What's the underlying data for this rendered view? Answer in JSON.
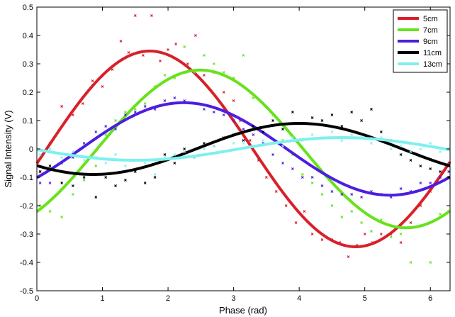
{
  "chart_data": {
    "type": "scatter",
    "title": "",
    "xlabel": "Phase (rad)",
    "ylabel": "Signal Intensity (V)",
    "xlim": [
      0,
      6.3
    ],
    "ylim": [
      -0.5,
      0.5
    ],
    "xticks": [
      0,
      1,
      2,
      3,
      4,
      5,
      6
    ],
    "yticks": [
      -0.5,
      -0.4,
      -0.3,
      -0.2,
      -0.1,
      0,
      0.1,
      0.2,
      0.3,
      0.4,
      0.5
    ],
    "grid": false,
    "legend_position": "top-right",
    "series": [
      {
        "name": "5cm",
        "color": "#d8202a",
        "fit": {
          "amplitude": 0.345,
          "peak_phase": 1.72,
          "offset": 0.0
        },
        "points": [
          [
            0.05,
            -0.08
          ],
          [
            0.2,
            0.02
          ],
          [
            0.38,
            0.15
          ],
          [
            0.55,
            0.12
          ],
          [
            0.7,
            0.16
          ],
          [
            0.85,
            0.24
          ],
          [
            1.0,
            0.22
          ],
          [
            1.15,
            0.28
          ],
          [
            1.28,
            0.38
          ],
          [
            1.4,
            0.34
          ],
          [
            1.5,
            0.47
          ],
          [
            1.62,
            0.33
          ],
          [
            1.75,
            0.47
          ],
          [
            1.88,
            0.31
          ],
          [
            2.0,
            0.35
          ],
          [
            2.12,
            0.37
          ],
          [
            2.3,
            0.3
          ],
          [
            2.42,
            0.4
          ],
          [
            2.55,
            0.26
          ],
          [
            2.7,
            0.27
          ],
          [
            2.85,
            0.2
          ],
          [
            3.0,
            0.17
          ],
          [
            3.1,
            0.1
          ],
          [
            3.25,
            0.03
          ],
          [
            3.38,
            -0.04
          ],
          [
            3.5,
            -0.1
          ],
          [
            3.65,
            -0.15
          ],
          [
            3.8,
            -0.2
          ],
          [
            3.95,
            -0.26
          ],
          [
            4.08,
            -0.22
          ],
          [
            4.2,
            -0.3
          ],
          [
            4.35,
            -0.32
          ],
          [
            4.5,
            -0.32
          ],
          [
            4.62,
            -0.33
          ],
          [
            4.75,
            -0.38
          ],
          [
            4.88,
            -0.34
          ],
          [
            5.0,
            -0.3
          ],
          [
            5.12,
            -0.33
          ],
          [
            5.25,
            -0.3
          ],
          [
            5.4,
            -0.3
          ],
          [
            5.55,
            -0.33
          ],
          [
            5.7,
            -0.26
          ],
          [
            5.85,
            -0.2
          ],
          [
            6.0,
            -0.15
          ],
          [
            6.15,
            -0.1
          ],
          [
            6.28,
            -0.06
          ]
        ]
      },
      {
        "name": "7cm",
        "color": "#66e21c",
        "fit": {
          "amplitude": 0.278,
          "peak_phase": 2.49,
          "offset": 0.0
        },
        "points": [
          [
            0.05,
            -0.2
          ],
          [
            0.2,
            -0.22
          ],
          [
            0.38,
            -0.24
          ],
          [
            0.55,
            -0.16
          ],
          [
            0.72,
            -0.11
          ],
          [
            0.9,
            -0.06
          ],
          [
            1.05,
            0.05
          ],
          [
            1.2,
            0.1
          ],
          [
            1.35,
            0.13
          ],
          [
            1.5,
            0.14
          ],
          [
            1.65,
            0.16
          ],
          [
            1.8,
            0.22
          ],
          [
            1.95,
            0.26
          ],
          [
            2.1,
            0.25
          ],
          [
            2.25,
            0.36
          ],
          [
            2.4,
            0.27
          ],
          [
            2.55,
            0.33
          ],
          [
            2.7,
            0.3
          ],
          [
            2.85,
            0.27
          ],
          [
            3.0,
            0.25
          ],
          [
            3.15,
            0.33
          ],
          [
            3.3,
            0.18
          ],
          [
            3.45,
            0.16
          ],
          [
            3.6,
            0.12
          ],
          [
            3.75,
            0.03
          ],
          [
            3.9,
            -0.02
          ],
          [
            4.05,
            -0.09
          ],
          [
            4.2,
            -0.12
          ],
          [
            4.35,
            -0.16
          ],
          [
            4.5,
            -0.2
          ],
          [
            4.65,
            -0.24
          ],
          [
            4.8,
            -0.22
          ],
          [
            4.95,
            -0.26
          ],
          [
            5.1,
            -0.29
          ],
          [
            5.25,
            -0.25
          ],
          [
            5.4,
            -0.31
          ],
          [
            5.55,
            -0.3
          ],
          [
            5.7,
            -0.4
          ],
          [
            5.85,
            -0.27
          ],
          [
            6.0,
            -0.4
          ],
          [
            6.15,
            -0.23
          ],
          [
            6.28,
            -0.22
          ]
        ]
      },
      {
        "name": "9cm",
        "color": "#4c1ee0",
        "fit": {
          "amplitude": 0.163,
          "peak_phase": 2.24,
          "offset": 0.0
        },
        "points": [
          [
            0.05,
            -0.12
          ],
          [
            0.2,
            -0.12
          ],
          [
            0.38,
            -0.05
          ],
          [
            0.55,
            -0.03
          ],
          [
            0.72,
            0.02
          ],
          [
            0.9,
            0.06
          ],
          [
            1.05,
            0.08
          ],
          [
            1.2,
            0.07
          ],
          [
            1.35,
            0.12
          ],
          [
            1.5,
            0.13
          ],
          [
            1.65,
            0.15
          ],
          [
            1.8,
            0.14
          ],
          [
            1.95,
            0.17
          ],
          [
            2.1,
            0.18
          ],
          [
            2.25,
            0.17
          ],
          [
            2.4,
            0.16
          ],
          [
            2.55,
            0.14
          ],
          [
            2.7,
            0.13
          ],
          [
            2.85,
            0.12
          ],
          [
            3.0,
            0.1
          ],
          [
            3.15,
            0.07
          ],
          [
            3.3,
            0.05
          ],
          [
            3.45,
            0.02
          ],
          [
            3.6,
            -0.02
          ],
          [
            3.75,
            -0.05
          ],
          [
            3.9,
            -0.07
          ],
          [
            4.05,
            -0.1
          ],
          [
            4.2,
            -0.1
          ],
          [
            4.35,
            -0.13
          ],
          [
            4.5,
            -0.15
          ],
          [
            4.65,
            -0.16
          ],
          [
            4.8,
            -0.16
          ],
          [
            4.95,
            -0.17
          ],
          [
            5.1,
            -0.15
          ],
          [
            5.25,
            -0.16
          ],
          [
            5.4,
            -0.17
          ],
          [
            5.55,
            -0.14
          ],
          [
            5.7,
            -0.15
          ],
          [
            5.85,
            -0.12
          ],
          [
            6.0,
            -0.12
          ],
          [
            6.15,
            -0.1
          ],
          [
            6.28,
            -0.08
          ]
        ]
      },
      {
        "name": "11cm",
        "color": "#000000",
        "fit": {
          "amplitude": 0.09,
          "peak_phase": 4.0,
          "offset": 0.0
        },
        "points": [
          [
            0.05,
            -0.08
          ],
          [
            0.2,
            -0.06
          ],
          [
            0.38,
            -0.12
          ],
          [
            0.55,
            -0.13
          ],
          [
            0.72,
            -0.1
          ],
          [
            0.9,
            -0.17
          ],
          [
            1.05,
            -0.1
          ],
          [
            1.2,
            -0.13
          ],
          [
            1.35,
            -0.11
          ],
          [
            1.5,
            -0.08
          ],
          [
            1.65,
            -0.12
          ],
          [
            1.8,
            -0.1
          ],
          [
            1.95,
            -0.02
          ],
          [
            2.1,
            -0.05
          ],
          [
            2.25,
            0.0
          ],
          [
            2.4,
            -0.03
          ],
          [
            2.55,
            0.02
          ],
          [
            2.7,
            0.01
          ],
          [
            2.85,
            0.04
          ],
          [
            3.0,
            0.05
          ],
          [
            3.15,
            0.03
          ],
          [
            3.3,
            0.08
          ],
          [
            3.45,
            0.06
          ],
          [
            3.6,
            0.1
          ],
          [
            3.75,
            0.07
          ],
          [
            3.9,
            0.13
          ],
          [
            4.05,
            0.09
          ],
          [
            4.2,
            0.11
          ],
          [
            4.35,
            0.1
          ],
          [
            4.5,
            0.12
          ],
          [
            4.65,
            0.08
          ],
          [
            4.8,
            0.13
          ],
          [
            4.95,
            0.1
          ],
          [
            5.1,
            0.14
          ],
          [
            5.25,
            0.06
          ],
          [
            5.4,
            0.03
          ],
          [
            5.55,
            -0.02
          ],
          [
            5.7,
            -0.04
          ],
          [
            5.85,
            -0.06
          ],
          [
            6.0,
            -0.07
          ],
          [
            6.15,
            -0.08
          ],
          [
            6.28,
            -0.1
          ]
        ]
      },
      {
        "name": "13cm",
        "color": "#7ff0ee",
        "fit": {
          "amplitude": 0.04,
          "peak_phase": 4.65,
          "offset": 0.0
        },
        "points": [
          [
            0.05,
            -0.02
          ],
          [
            0.2,
            0.0
          ],
          [
            0.38,
            -0.03
          ],
          [
            0.55,
            -0.01
          ],
          [
            0.72,
            -0.04
          ],
          [
            0.9,
            -0.03
          ],
          [
            1.05,
            -0.05
          ],
          [
            1.2,
            -0.02
          ],
          [
            1.35,
            -0.06
          ],
          [
            1.5,
            -0.04
          ],
          [
            1.65,
            -0.05
          ],
          [
            1.8,
            -0.09
          ],
          [
            1.95,
            -0.03
          ],
          [
            2.1,
            -0.02
          ],
          [
            2.25,
            -0.01
          ],
          [
            2.4,
            -0.03
          ],
          [
            2.55,
            0.0
          ],
          [
            2.7,
            0.01
          ],
          [
            2.85,
            -0.01
          ],
          [
            3.0,
            0.02
          ],
          [
            3.15,
            0.02
          ],
          [
            3.3,
            0.01
          ],
          [
            3.45,
            0.03
          ],
          [
            3.6,
            0.02
          ],
          [
            3.75,
            0.01
          ],
          [
            3.9,
            0.04
          ],
          [
            4.05,
            0.03
          ],
          [
            4.2,
            0.05
          ],
          [
            4.35,
            0.04
          ],
          [
            4.5,
            0.06
          ],
          [
            4.65,
            0.03
          ],
          [
            4.8,
            0.05
          ],
          [
            4.95,
            0.04
          ],
          [
            5.1,
            0.02
          ],
          [
            5.25,
            0.04
          ],
          [
            5.4,
            0.0
          ],
          [
            5.55,
            0.01
          ],
          [
            5.7,
            -0.01
          ],
          [
            5.85,
            0.0
          ],
          [
            6.0,
            0.02
          ],
          [
            6.15,
            -0.01
          ],
          [
            6.28,
            0.0
          ]
        ]
      }
    ]
  }
}
